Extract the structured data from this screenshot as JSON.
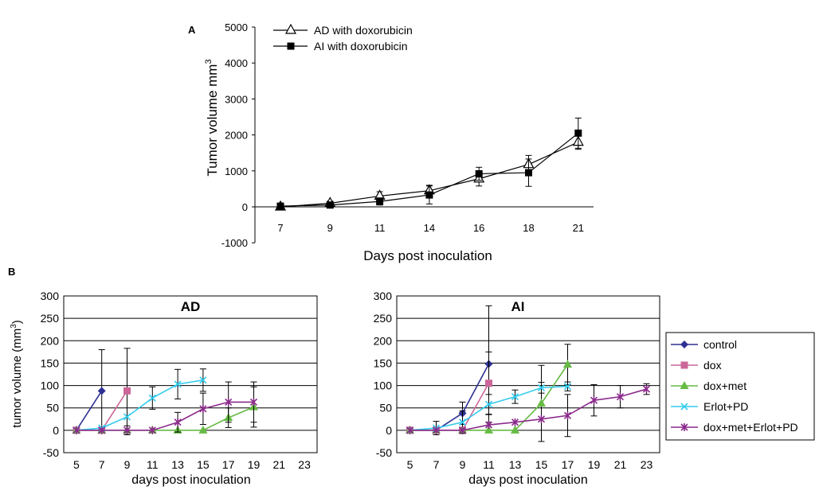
{
  "panel_labels": {
    "a": "A",
    "b": "B"
  },
  "chart_data": [
    {
      "type": "line",
      "panel": "A",
      "title": "",
      "xlabel": "Days post inoculation",
      "ylabel": "Tumor volume mm",
      "ylabel_sup": "3",
      "categories": [
        "7",
        "9",
        "11",
        "14",
        "16",
        "18",
        "21"
      ],
      "ylim": [
        -1000,
        5000
      ],
      "yticks": [
        -1000,
        0,
        1000,
        2000,
        3000,
        4000,
        5000
      ],
      "legend_position": "top-left",
      "series": [
        {
          "name": "AD with doxorubicin",
          "marker": "triangle-open",
          "color": "#000000",
          "values": [
            0,
            100,
            300,
            450,
            780,
            1180,
            1800
          ],
          "err": [
            30,
            60,
            120,
            150,
            200,
            250,
            200
          ]
        },
        {
          "name": "AI with doxorubicin",
          "marker": "square-filled",
          "color": "#000000",
          "values": [
            20,
            50,
            150,
            330,
            920,
            950,
            2050
          ],
          "err": [
            40,
            60,
            100,
            250,
            180,
            380,
            420
          ]
        }
      ]
    },
    {
      "type": "line",
      "panel": "B-AD",
      "title": "AD",
      "xlabel": "days post inoculation",
      "ylabel": "tumor volume (mm",
      "ylabel_sup": "3",
      "ylabel_end": ")",
      "x": [
        5,
        7,
        9,
        11,
        13,
        15,
        17,
        19,
        21,
        23
      ],
      "xlim": [
        4,
        24
      ],
      "ylim": [
        -50,
        300
      ],
      "yticks": [
        -50,
        0,
        50,
        100,
        150,
        200,
        250,
        300
      ],
      "series": [
        {
          "name": "control",
          "points": [
            [
              5,
              0
            ],
            [
              7,
              88
            ]
          ],
          "err": [
            0,
            92
          ]
        },
        {
          "name": "dox",
          "points": [
            [
              5,
              0
            ],
            [
              7,
              0
            ],
            [
              9,
              88
            ]
          ],
          "err": [
            0,
            0,
            95
          ]
        },
        {
          "name": "dox+met",
          "points": [
            [
              5,
              0
            ],
            [
              7,
              0
            ],
            [
              9,
              0
            ],
            [
              11,
              0
            ],
            [
              13,
              0
            ],
            [
              15,
              0
            ],
            [
              17,
              28
            ],
            [
              19,
              52
            ]
          ],
          "err": [
            0,
            0,
            0,
            0,
            0,
            0,
            22,
            45
          ]
        },
        {
          "name": "Erlot+PD",
          "points": [
            [
              5,
              0
            ],
            [
              7,
              5
            ],
            [
              9,
              30
            ],
            [
              11,
              72
            ],
            [
              13,
              103
            ],
            [
              15,
              112
            ]
          ],
          "err": [
            0,
            0,
            0,
            25,
            33,
            25
          ]
        },
        {
          "name": "dox+met+Erlot+PD",
          "points": [
            [
              5,
              0
            ],
            [
              7,
              0
            ],
            [
              9,
              0
            ],
            [
              11,
              0
            ],
            [
              13,
              18
            ],
            [
              15,
              48
            ],
            [
              17,
              63
            ],
            [
              19,
              63
            ]
          ],
          "err": [
            0,
            0,
            10,
            0,
            22,
            35,
            45,
            45
          ]
        }
      ]
    },
    {
      "type": "line",
      "panel": "B-AI",
      "title": "AI",
      "xlabel": "days post inoculation",
      "x": [
        5,
        7,
        9,
        11,
        13,
        15,
        17,
        19,
        21,
        23
      ],
      "xlim": [
        4,
        24
      ],
      "ylim": [
        -50,
        300
      ],
      "yticks": [
        -50,
        0,
        50,
        100,
        150,
        200,
        250,
        300
      ],
      "legend_position": "right",
      "series": [
        {
          "name": "control",
          "color": "#2e3192",
          "marker": "diamond",
          "points": [
            [
              5,
              0
            ],
            [
              7,
              0
            ],
            [
              9,
              38
            ],
            [
              11,
              148
            ]
          ],
          "err": [
            0,
            0,
            25,
            130
          ]
        },
        {
          "name": "dox",
          "color": "#cc6699",
          "marker": "square",
          "points": [
            [
              5,
              0
            ],
            [
              7,
              0
            ],
            [
              9,
              0
            ],
            [
              11,
              105
            ]
          ],
          "err": [
            0,
            0,
            0,
            70
          ]
        },
        {
          "name": "dox+met",
          "color": "#66bb44",
          "marker": "triangle",
          "points": [
            [
              5,
              0
            ],
            [
              7,
              0
            ],
            [
              9,
              0
            ],
            [
              11,
              0
            ],
            [
              13,
              0
            ],
            [
              15,
              60
            ],
            [
              17,
              147
            ]
          ],
          "err": [
            0,
            0,
            0,
            0,
            0,
            85,
            45
          ]
        },
        {
          "name": "Erlot+PD",
          "color": "#33ccee",
          "marker": "x",
          "points": [
            [
              5,
              0
            ],
            [
              7,
              5
            ],
            [
              9,
              18
            ],
            [
              11,
              58
            ],
            [
              13,
              75
            ],
            [
              15,
              95
            ],
            [
              17,
              98
            ]
          ],
          "err": [
            0,
            15,
            25,
            22,
            15,
            12,
            10
          ]
        },
        {
          "name": "dox+met+Erlot+PD",
          "color": "#8b2a8b",
          "marker": "star",
          "points": [
            [
              5,
              0
            ],
            [
              7,
              0
            ],
            [
              9,
              0
            ],
            [
              11,
              12
            ],
            [
              13,
              18
            ],
            [
              15,
              25
            ],
            [
              17,
              33
            ],
            [
              19,
              67
            ],
            [
              21,
              75
            ],
            [
              23,
              92
            ]
          ],
          "err": [
            0,
            0,
            0,
            0,
            0,
            0,
            47,
            35,
            25,
            12
          ]
        }
      ]
    }
  ]
}
